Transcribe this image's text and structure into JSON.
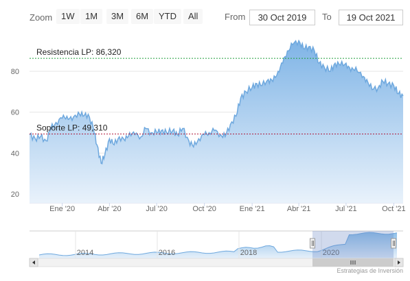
{
  "toolbar": {
    "zoom_label": "Zoom",
    "buttons": [
      "1W",
      "1M",
      "3M",
      "6M",
      "YTD",
      "All"
    ],
    "from_label": "From",
    "from_value": "30 Oct 2019",
    "to_label": "To",
    "to_value": "19 Oct 2021"
  },
  "chart_data": {
    "type": "area",
    "title": "",
    "xlabel": "",
    "ylabel": "",
    "ylim": [
      20,
      100
    ],
    "yticks": [
      20,
      40,
      60,
      80
    ],
    "xticks": [
      "Ene '20",
      "Abr '20",
      "Jul '20",
      "Oct '20",
      "Ene '21",
      "Abr '21",
      "Jul '21",
      "Oct '21"
    ],
    "xtick_dates": [
      "2020-01-01",
      "2020-04-01",
      "2020-07-01",
      "2020-10-01",
      "2021-01-01",
      "2021-04-01",
      "2021-07-01",
      "2021-10-01"
    ],
    "grid": true,
    "series": [
      {
        "values_x": [
          "2019-10-30",
          "2019-11-10",
          "2019-11-20",
          "2019-12-01",
          "2019-12-10",
          "2019-12-20",
          "2020-01-01",
          "2020-01-10",
          "2020-01-20",
          "2020-02-01",
          "2020-02-10",
          "2020-02-20",
          "2020-03-01",
          "2020-03-08",
          "2020-03-16",
          "2020-03-23",
          "2020-04-01",
          "2020-04-10",
          "2020-04-20",
          "2020-05-01",
          "2020-05-10",
          "2020-05-20",
          "2020-06-01",
          "2020-06-10",
          "2020-06-20",
          "2020-07-01",
          "2020-07-10",
          "2020-07-20",
          "2020-08-01",
          "2020-08-10",
          "2020-08-20",
          "2020-09-01",
          "2020-09-10",
          "2020-09-20",
          "2020-10-01",
          "2020-10-10",
          "2020-10-20",
          "2020-11-01",
          "2020-11-10",
          "2020-11-20",
          "2020-12-01",
          "2020-12-10",
          "2020-12-20",
          "2021-01-01",
          "2021-01-10",
          "2021-01-20",
          "2021-02-01",
          "2021-02-10",
          "2021-02-20",
          "2021-03-01",
          "2021-03-10",
          "2021-03-20",
          "2021-04-01",
          "2021-04-10",
          "2021-04-20",
          "2021-05-01",
          "2021-05-10",
          "2021-05-20",
          "2021-06-01",
          "2021-06-10",
          "2021-06-20",
          "2021-07-01",
          "2021-07-10",
          "2021-07-20",
          "2021-08-01",
          "2021-08-10",
          "2021-08-20",
          "2021-09-01",
          "2021-09-10",
          "2021-09-20",
          "2021-10-01",
          "2021-10-10",
          "2021-10-19"
        ],
        "values": [
          49,
          47,
          48,
          46,
          52,
          55,
          57,
          58,
          56,
          60,
          58,
          59,
          52,
          44,
          35,
          39,
          47,
          44,
          48,
          46,
          50,
          49,
          48,
          52,
          50,
          50,
          51,
          50,
          51,
          49,
          52,
          46,
          43,
          47,
          49,
          50,
          51,
          49,
          48,
          54,
          58,
          67,
          70,
          72,
          74,
          73,
          76,
          75,
          80,
          84,
          90,
          93,
          95,
          91,
          92,
          90,
          84,
          82,
          80,
          84,
          83,
          84,
          80,
          82,
          77,
          76,
          71,
          72,
          75,
          74,
          73,
          69,
          68
        ]
      }
    ],
    "reference_lines": [
      {
        "label": "Resistencia LP: 86,320",
        "value": 86.32,
        "color": "#1e9e3a"
      },
      {
        "label": "Soporte LP: 49,310",
        "value": 49.31,
        "color": "#b0183a"
      }
    ],
    "navigator": {
      "years": [
        "2014",
        "2016",
        "2018",
        "2020"
      ]
    }
  },
  "credit": "Estrategias de Inversión",
  "colors": {
    "area_fill": "#8ebfe8",
    "line": "#6ea8de",
    "nav_mask": "#b7cbe6"
  }
}
